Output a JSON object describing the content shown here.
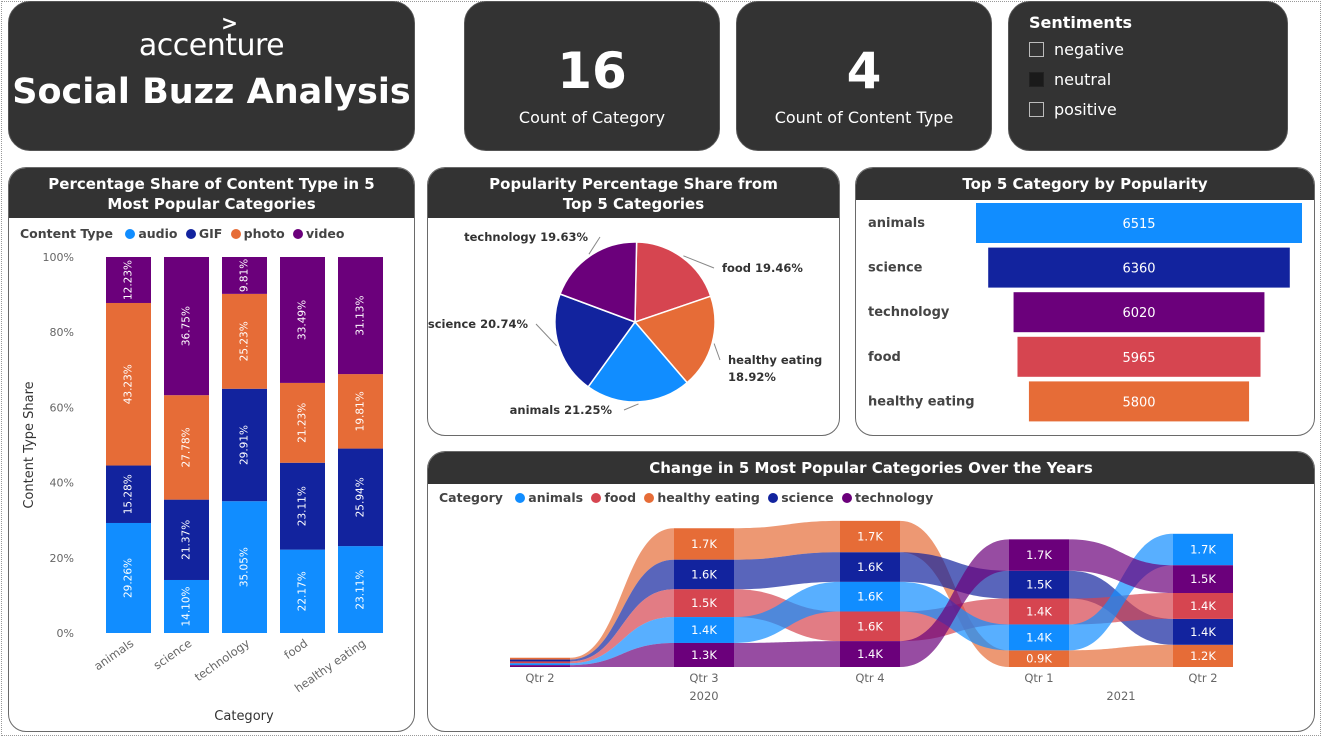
{
  "brand": {
    "logo_text": "accenture",
    "title": "Social Buzz Analysis"
  },
  "kpis": [
    {
      "value": "16",
      "label": "Count of Category"
    },
    {
      "value": "4",
      "label": "Count of Content Type"
    }
  ],
  "sentiments": {
    "title": "Sentiments",
    "options": [
      {
        "label": "negative",
        "checked": false
      },
      {
        "label": "neutral",
        "checked": true
      },
      {
        "label": "positive",
        "checked": false
      }
    ]
  },
  "chart_data": [
    {
      "type": "bar",
      "stacked": "100%",
      "title": "Percentage Share of Content Type in 5 Most Popular Categories",
      "legend_title": "Content Type",
      "xlabel": "Category",
      "ylabel": "Content Type Share",
      "yticks": [
        "0%",
        "20%",
        "40%",
        "60%",
        "80%",
        "100%"
      ],
      "ylim": [
        0,
        100
      ],
      "categories": [
        "animals",
        "science",
        "technology",
        "food",
        "healthy eating"
      ],
      "series": [
        {
          "name": "audio",
          "color": "#118dff",
          "values": [
            29.26,
            14.1,
            35.05,
            22.17,
            23.11
          ],
          "labels": [
            "29.26%",
            "14.10%",
            "35.05%",
            "22.17%",
            "23.11%"
          ]
        },
        {
          "name": "GIF",
          "color": "#12239e",
          "values": [
            15.28,
            21.37,
            29.91,
            23.11,
            25.94
          ],
          "labels": [
            "15.28%",
            "21.37%",
            "29.91%",
            "23.11%",
            "25.94%"
          ]
        },
        {
          "name": "photo",
          "color": "#e66c37",
          "values": [
            43.23,
            27.78,
            25.23,
            21.23,
            19.81
          ],
          "labels": [
            "43.23%",
            "27.78%",
            "25.23%",
            "21.23%",
            "19.81%"
          ]
        },
        {
          "name": "video",
          "color": "#6b007b",
          "values": [
            12.23,
            36.75,
            9.81,
            33.49,
            31.13
          ],
          "labels": [
            "12.23%",
            "36.75%",
            "9.81%",
            "33.49%",
            "31.13%"
          ]
        }
      ]
    },
    {
      "type": "pie",
      "title": "Popularity Percentage Share from Top 5 Categories",
      "slices": [
        {
          "name": "food",
          "value": 19.46,
          "label": "food 19.46%",
          "color": "#d64550"
        },
        {
          "name": "healthy eating",
          "value": 18.92,
          "label_lines": [
            "healthy eating",
            "18.92%"
          ],
          "color": "#e66c37"
        },
        {
          "name": "animals",
          "value": 21.25,
          "label": "animals 21.25%",
          "color": "#118dff"
        },
        {
          "name": "science",
          "value": 20.74,
          "label": "science 20.74%",
          "color": "#12239e"
        },
        {
          "name": "technology",
          "value": 19.63,
          "label": "technology 19.63%",
          "color": "#6b007b"
        }
      ]
    },
    {
      "type": "bar",
      "orientation": "horizontal",
      "title": "Top 5 Category by Popularity",
      "categories": [
        "animals",
        "science",
        "technology",
        "food",
        "healthy eating"
      ],
      "values": [
        6515,
        6360,
        6020,
        5965,
        5800
      ],
      "labels": [
        "6515",
        "6360",
        "6020",
        "5965",
        "5800"
      ],
      "colors": [
        "#118dff",
        "#12239e",
        "#6b007b",
        "#d64550",
        "#e66c37"
      ]
    },
    {
      "type": "area",
      "subtype": "ribbon",
      "title": "Change in 5 Most Popular Categories Over the Years",
      "legend_title": "Category",
      "legend": [
        {
          "name": "animals",
          "color": "#118dff"
        },
        {
          "name": "food",
          "color": "#d64550"
        },
        {
          "name": "healthy eating",
          "color": "#e66c37"
        },
        {
          "name": "science",
          "color": "#12239e"
        },
        {
          "name": "technology",
          "color": "#6b007b"
        }
      ],
      "x": [
        "Qtr 2",
        "Qtr 3",
        "Qtr 4",
        "Qtr 1",
        "Qtr 2"
      ],
      "year_labels": [
        {
          "text": "2020",
          "under": 1
        },
        {
          "text": "2021",
          "under": 3.5
        }
      ],
      "series": [
        {
          "name": "healthy eating",
          "values": [
            0.1,
            1.7,
            1.7,
            0.9,
            1.2
          ],
          "labels": [
            "",
            "1.7K",
            "1.7K",
            "0.9K",
            "1.2K"
          ]
        },
        {
          "name": "science",
          "values": [
            0.1,
            1.6,
            1.6,
            1.5,
            1.4
          ],
          "labels": [
            "",
            "1.6K",
            "1.6K",
            "1.5K",
            "1.4K"
          ]
        },
        {
          "name": "food",
          "values": [
            0.1,
            1.5,
            1.6,
            1.4,
            1.4
          ],
          "labels": [
            "",
            "1.5K",
            "1.6K",
            "1.4K",
            "1.4K"
          ]
        },
        {
          "name": "animals",
          "values": [
            0.1,
            1.4,
            1.6,
            1.4,
            1.7
          ],
          "labels": [
            "",
            "1.4K",
            "1.6K",
            "1.4K",
            "1.7K"
          ]
        },
        {
          "name": "technology",
          "values": [
            0.1,
            1.3,
            1.4,
            1.7,
            1.5
          ],
          "labels": [
            "",
            "1.3K",
            "1.4K",
            "1.7K",
            "1.5K"
          ]
        }
      ],
      "rank_top_to_bottom": [
        [
          "healthy eating",
          "science",
          "food",
          "animals",
          "technology"
        ],
        [
          "healthy eating",
          "science",
          "food",
          "animals",
          "technology"
        ],
        [
          "healthy eating",
          "science",
          "animals",
          "food",
          "technology"
        ],
        [
          "technology",
          "science",
          "food",
          "animals",
          "healthy eating"
        ],
        [
          "animals",
          "technology",
          "food",
          "science",
          "healthy eating"
        ]
      ]
    }
  ]
}
